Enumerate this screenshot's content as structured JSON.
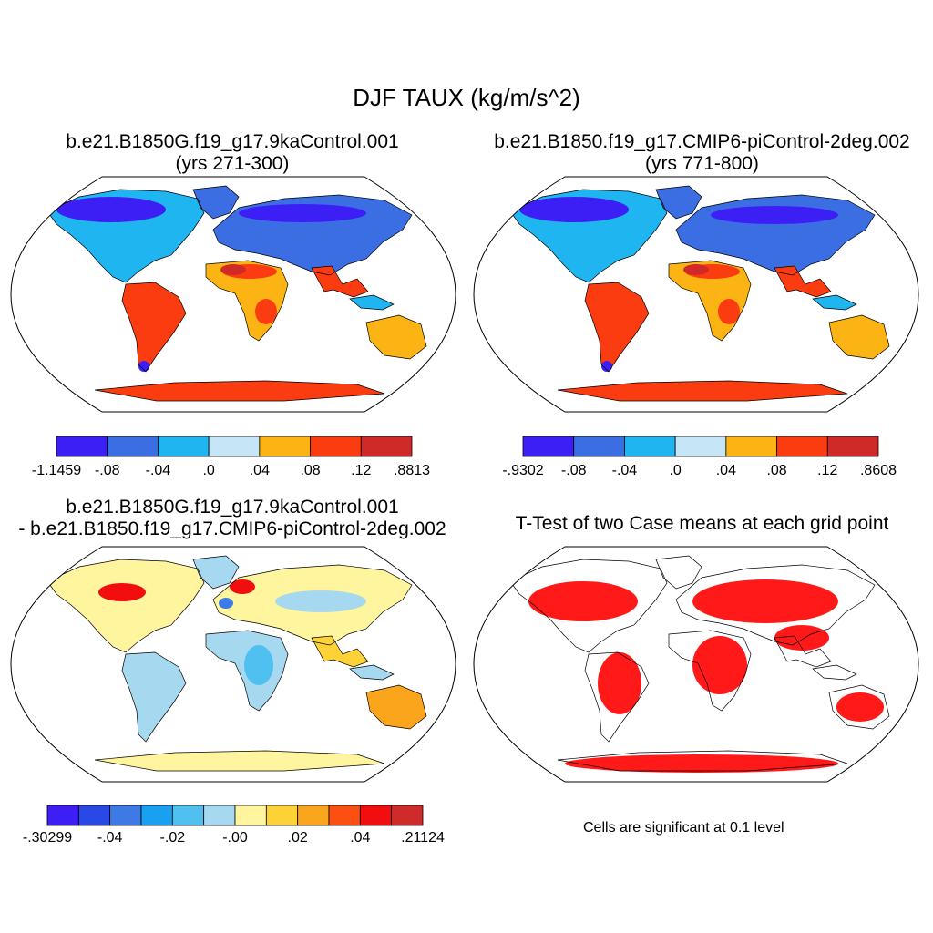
{
  "title": "DJF TAUX (kg/m/s^2)",
  "panels": [
    {
      "id": "case1",
      "title_line1": "b.e21.B1850G.f19_g17.9kaControl.001",
      "title_line2": "(yrs 271-300)",
      "colorbar": {
        "colors": [
          "#3c1ff5",
          "#3a6ee2",
          "#1eb5f0",
          "#c6e6f7",
          "#fbb413",
          "#fb3c10",
          "#d02a28"
        ],
        "labels": [
          "-1.1459",
          "-.08",
          "-.04",
          ".0",
          ".04",
          ".08",
          ".12",
          ".8813"
        ]
      }
    },
    {
      "id": "case2",
      "title_line1": "b.e21.B1850.f19_g17.CMIP6-piControl-2deg.002",
      "title_line2": "(yrs 771-800)",
      "colorbar": {
        "colors": [
          "#3c1ff5",
          "#3a6ee2",
          "#1eb5f0",
          "#c6e6f7",
          "#fbb413",
          "#fb3c10",
          "#d02a28"
        ],
        "labels": [
          "-.9302",
          "-.08",
          "-.04",
          ".0",
          ".04",
          ".08",
          ".12",
          ".8608"
        ]
      }
    },
    {
      "id": "difference",
      "title_line1": "b.e21.B1850G.f19_g17.9kaControl.001",
      "title_line2": "- b.e21.B1850.f19_g17.CMIP6-piControl-2deg.002",
      "colorbar": {
        "colors": [
          "#3d1ff5",
          "#2a48e6",
          "#3e7ae6",
          "#1aa0f0",
          "#4fc0ef",
          "#a6d8ef",
          "#fff59e",
          "#fdd237",
          "#fba51c",
          "#fb5012",
          "#f20e0e",
          "#cf2b2b"
        ],
        "labels": [
          "-.30299",
          "-.04",
          "-.02",
          "-.00",
          ".02",
          ".04",
          ".21124"
        ]
      }
    },
    {
      "id": "ttest",
      "title_line1": "T-Test of two Case means at each grid point",
      "note": "Cells are significant at 0.1 level",
      "significant_color": "#ff0000"
    }
  ]
}
